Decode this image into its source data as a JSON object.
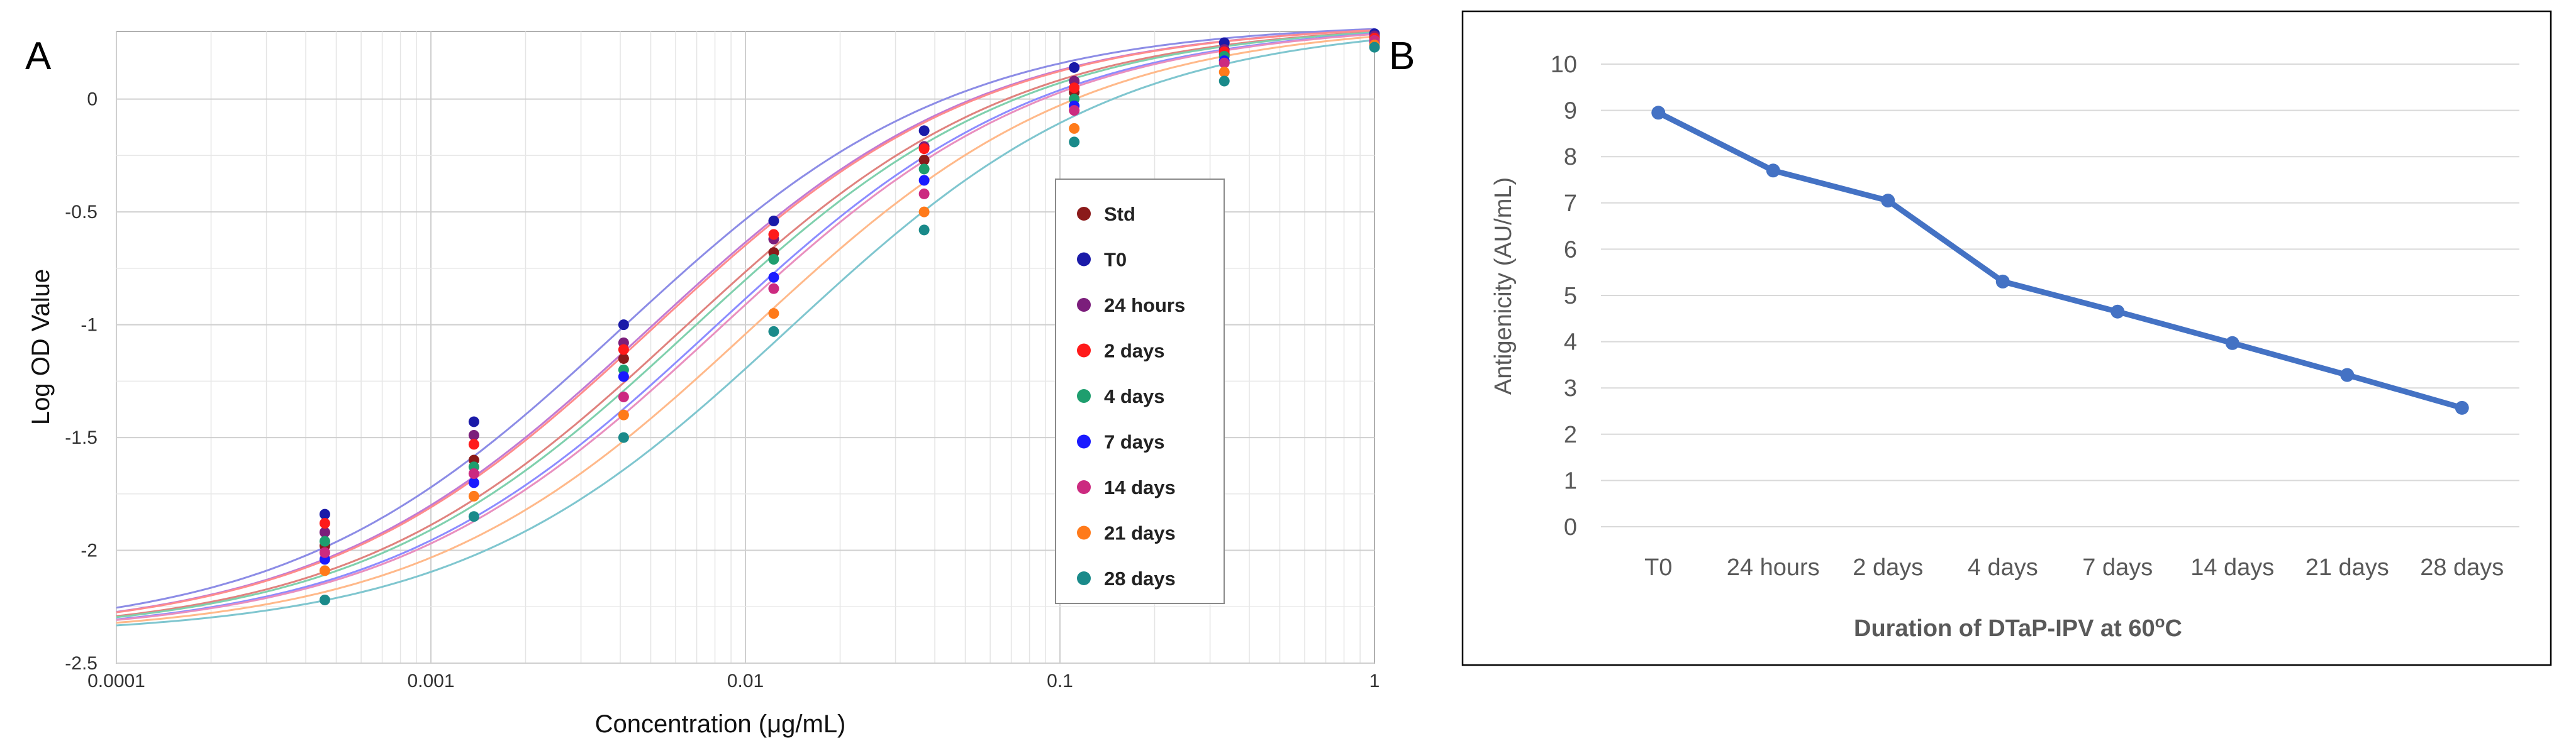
{
  "panels": {
    "a_letter": "A",
    "b_letter": "B"
  },
  "chart_data": [
    {
      "type": "scatter",
      "title": "",
      "xlabel": "Concentration (μg/mL)",
      "ylabel": "Log OD Value",
      "xscale": "log",
      "xlim": [
        0.0001,
        1
      ],
      "ylim": [
        -2.5,
        0.3
      ],
      "x_tick_values": [
        0.0001,
        0.001,
        0.01,
        0.1,
        1
      ],
      "x_tick_labels": [
        "0.0001",
        "0.001",
        "0.01",
        "0.1",
        "1"
      ],
      "y_tick_values": [
        0,
        -0.5,
        -1,
        -1.5,
        -2,
        -2.5
      ],
      "y_tick_labels": [
        "0",
        "-0.5",
        "-1",
        "-1.5",
        "-2",
        "-2.5"
      ],
      "grid": true,
      "legend_position": "right",
      "x": [
        0.00046,
        0.00137,
        0.0041,
        0.0123,
        0.037,
        0.111,
        0.333,
        1.0
      ],
      "series": [
        {
          "name": "Std",
          "color": "#8b1a1a",
          "curve_color": "#e0827e",
          "values": [
            -1.98,
            -1.6,
            -1.15,
            -0.68,
            -0.27,
            0.03,
            0.2,
            0.27
          ]
        },
        {
          "name": "T0",
          "color": "#1a1aa8",
          "curve_color": "#8c8ce6",
          "values": [
            -1.84,
            -1.43,
            -1.0,
            -0.54,
            -0.14,
            0.14,
            0.25,
            0.29
          ]
        },
        {
          "name": "24 hours",
          "color": "#7b1e7b",
          "curve_color": "#c17ad4",
          "values": [
            -1.92,
            -1.49,
            -1.08,
            -0.62,
            -0.21,
            0.08,
            0.22,
            0.28
          ]
        },
        {
          "name": "2 days",
          "color": "#ff1a1a",
          "curve_color": "#ff8c8c",
          "values": [
            -1.88,
            -1.53,
            -1.11,
            -0.6,
            -0.22,
            0.05,
            0.21,
            0.27
          ]
        },
        {
          "name": "4 days",
          "color": "#1e9e6e",
          "curve_color": "#7fd0ad",
          "values": [
            -1.96,
            -1.63,
            -1.2,
            -0.71,
            -0.31,
            0.0,
            0.19,
            0.26
          ]
        },
        {
          "name": "7 days",
          "color": "#1a1aff",
          "curve_color": "#8c8cff",
          "values": [
            -2.04,
            -1.7,
            -1.23,
            -0.79,
            -0.36,
            -0.03,
            0.17,
            0.25
          ]
        },
        {
          "name": "14 days",
          "color": "#cc2a80",
          "curve_color": "#e98fbf",
          "values": [
            -2.01,
            -1.66,
            -1.32,
            -0.84,
            -0.42,
            -0.05,
            0.16,
            0.26
          ]
        },
        {
          "name": "21 days",
          "color": "#ff7a1a",
          "curve_color": "#ffb98a",
          "values": [
            -2.09,
            -1.76,
            -1.4,
            -0.95,
            -0.5,
            -0.13,
            0.12,
            0.24
          ]
        },
        {
          "name": "28 days",
          "color": "#1a8a8a",
          "curve_color": "#7fc6cf",
          "values": [
            -2.22,
            -1.85,
            -1.5,
            -1.03,
            -0.58,
            -0.19,
            0.08,
            0.23
          ]
        }
      ]
    },
    {
      "type": "line",
      "title": "",
      "xlabel": "Duration of DTaP-IPV at 60",
      "xlabel_sup": "o",
      "xlabel_tail": "C",
      "ylabel": "Antigenicity (AU/mL)",
      "categories": [
        "T0",
        "24 hours",
        "2 days",
        "4 days",
        "7 days",
        "14 days",
        "21 days",
        "28 days"
      ],
      "values": [
        8.95,
        7.7,
        7.05,
        5.3,
        4.65,
        3.97,
        3.28,
        2.57
      ],
      "ylim": [
        0,
        10
      ],
      "y_tick_labels": [
        "0",
        "1",
        "2",
        "3",
        "4",
        "5",
        "6",
        "7",
        "8",
        "9",
        "10"
      ],
      "grid": true,
      "line_color": "#4472c4"
    }
  ]
}
